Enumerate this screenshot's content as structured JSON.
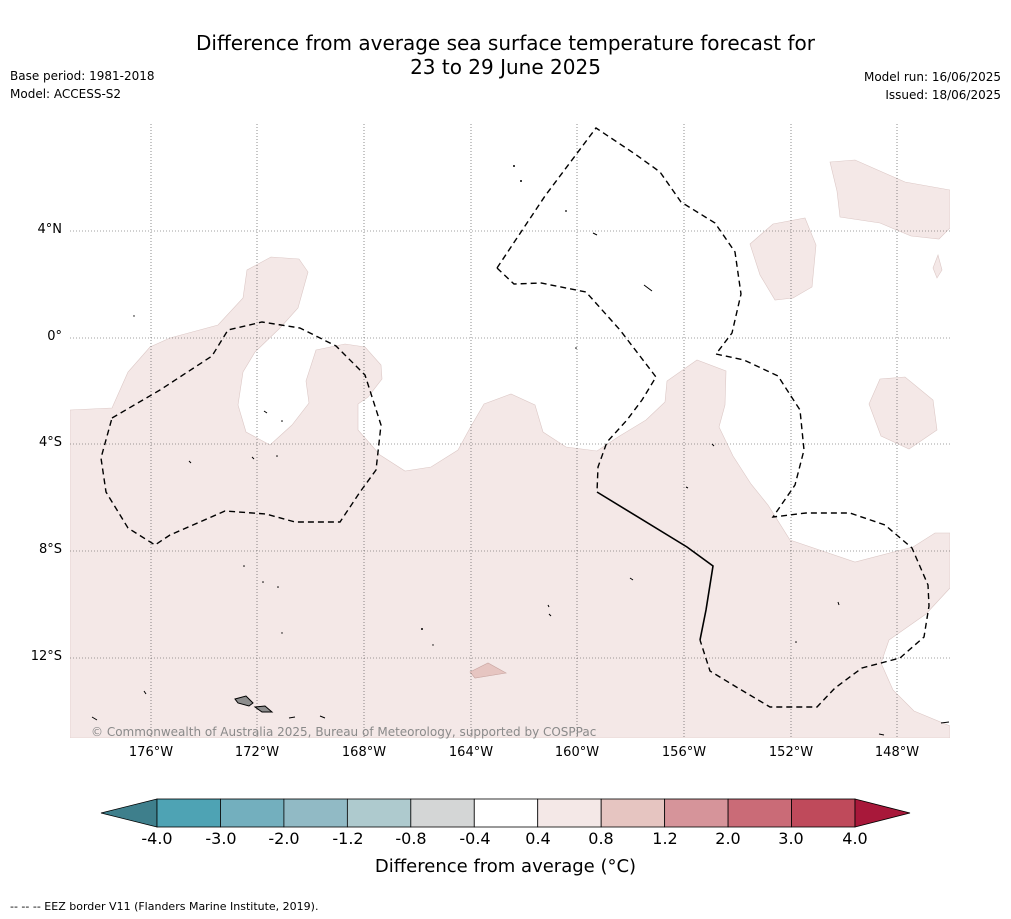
{
  "header": {
    "title_line1": "Difference from average sea surface temperature forecast for",
    "title_line2": "23 to 29 June 2025",
    "base_period": "Base period: 1981-2018",
    "model": "Model: ACCESS-S2",
    "model_run": "Model run: 16/06/2025",
    "issued": "Issued: 18/06/2025"
  },
  "map": {
    "latitude_labels": [
      "4°N",
      "0°",
      "4°S",
      "8°S",
      "12°S"
    ],
    "longitude_labels": [
      "176°W",
      "172°W",
      "168°W",
      "164°W",
      "160°W",
      "156°W",
      "152°W",
      "148°W"
    ],
    "copyright": "© Commonwealth of Australia 2025, Bureau of Meteorology, supported by COSPPac",
    "anomaly_fill_color": "#f4e8e7",
    "warm_patch_color": "#e6c5c1",
    "land_color": "#8c8c8c"
  },
  "colorbar": {
    "ticks": [
      "-4.0",
      "-3.0",
      "-2.0",
      "-1.2",
      "-0.8",
      "-0.4",
      "0.4",
      "0.8",
      "1.2",
      "2.0",
      "3.0",
      "4.0"
    ],
    "colors": [
      "#3e7f8c",
      "#4ea3b4",
      "#73afbe",
      "#91bac5",
      "#aecace",
      "#d4d6d6",
      "#ffffff",
      "#f4e8e7",
      "#e6c5c1",
      "#d6949a",
      "#ca6b77",
      "#bf4a5b",
      "#a8183a"
    ],
    "label": "Difference from average (°C)"
  },
  "footnote": "-- -- -- EEZ border V11 (Flanders Marine Institute, 2019)."
}
